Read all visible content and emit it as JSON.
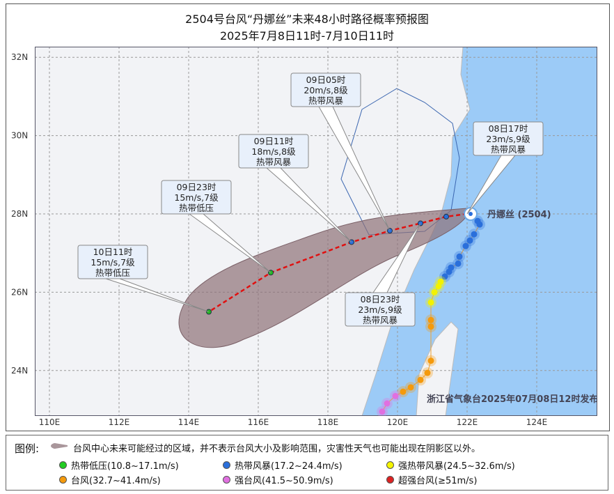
{
  "title": {
    "line1": "2504号台风“丹娜丝”未来48小时路径概率预报图",
    "line2": "2025年7月8日11时-7月10日11时"
  },
  "axes": {
    "lon_ticks": [
      "110E",
      "112E",
      "114E",
      "116E",
      "118E",
      "120E",
      "122E",
      "124E"
    ],
    "lat_ticks": [
      "32N",
      "30N",
      "28N",
      "26N",
      "24N"
    ],
    "lon": [
      110,
      112,
      114,
      116,
      118,
      120,
      122,
      124
    ],
    "lat": [
      32,
      30,
      28,
      26,
      24
    ]
  },
  "typhoon": {
    "name": "丹娜丝 (2504)",
    "current": [
      122.0,
      28.0
    ]
  },
  "forecast": [
    {
      "lon": 121.4,
      "lat": 27.93,
      "color": "#2a6fdb"
    },
    {
      "lon": 120.66,
      "lat": 27.76,
      "time": "08日23时",
      "wind": "23m/s,9级",
      "level": "热带风暴",
      "color": "#2a6fdb"
    },
    {
      "lon": 119.78,
      "lat": 27.57,
      "time": "09日05时",
      "wind": "20m/s,8级",
      "level": "热带风暴",
      "color": "#2a6fdb"
    },
    {
      "lon": 118.68,
      "lat": 27.28,
      "time": "09日11时",
      "wind": "18m/s,8级",
      "level": "热带风暴",
      "color": "#2a6fdb"
    },
    {
      "lon": 116.36,
      "lat": 26.5,
      "time": "09日23时",
      "wind": "15m/s,7级",
      "level": "热带低压",
      "color": "#22bb22"
    },
    {
      "lon": 114.58,
      "lat": 25.5,
      "time": "10日11时",
      "wind": "15m/s,7级",
      "level": "热带低压",
      "color": "#22bb22"
    }
  ],
  "current_label": {
    "time": "08日17时",
    "wind": "23m/s,9级",
    "level": "热带风暴"
  },
  "past_track": [
    [
      122.3,
      27.82,
      "#2a6fdb"
    ],
    [
      122.36,
      27.73,
      "#2a6fdb"
    ],
    [
      122.2,
      27.48,
      "#2a6fdb"
    ],
    [
      122.08,
      27.32,
      "#2a6fdb"
    ],
    [
      121.96,
      27.18,
      "#2a6fdb"
    ],
    [
      121.78,
      26.91,
      "#2a6fdb"
    ],
    [
      121.74,
      26.73,
      "#2a6fdb"
    ],
    [
      121.54,
      26.63,
      "#2a6fdb"
    ],
    [
      121.48,
      26.52,
      "#2a6fdb"
    ],
    [
      121.36,
      26.4,
      "#2a6fdb"
    ],
    [
      121.24,
      26.27,
      "#f2f200"
    ],
    [
      121.18,
      26.15,
      "#f2f200"
    ],
    [
      121.06,
      26.0,
      "#f2f200"
    ],
    [
      120.96,
      25.74,
      "#f2f200"
    ],
    [
      120.96,
      25.29,
      "#f59a0c"
    ],
    [
      120.96,
      25.12,
      "#f59a0c"
    ],
    [
      120.96,
      24.25,
      "#f59a0c"
    ],
    [
      120.86,
      23.94,
      "#f59a0c"
    ],
    [
      120.66,
      23.76,
      "#f59a0c"
    ],
    [
      120.38,
      23.57,
      "#f59a0c"
    ],
    [
      120.16,
      23.46,
      "#f59a0c"
    ],
    [
      119.94,
      23.35,
      "#e070e0"
    ],
    [
      119.7,
      23.16,
      "#e070e0"
    ],
    [
      119.56,
      22.95,
      "#e070e0"
    ]
  ],
  "publisher": "浙江省气象台2025年07月08日12时发布",
  "colors": {
    "sea": "#9ccbf7",
    "land": "#f2f3f6",
    "cone": "#8f7078",
    "track": "#e01010"
  },
  "legend": {
    "title": "图例:",
    "cone_text": "台风中心未来可能经过的区域，并不表示台风大小及影响范围，灾害性天气也可能出现在阴影区以外。",
    "items": [
      {
        "label": "热带低压(10.8~17.1m/s)",
        "color": "#22cc22"
      },
      {
        "label": "热带风暴(17.2~24.4m/s)",
        "color": "#2a6fdb"
      },
      {
        "label": "强热带风暴(24.5~32.6m/s)",
        "color": "#f5f500"
      },
      {
        "label": "台风(32.7~41.4m/s)",
        "color": "#f59a0c"
      },
      {
        "label": "强台风(41.5~50.9m/s)",
        "color": "#e070e0"
      },
      {
        "label": "超强台风(≥51m/s)",
        "color": "#dd2222"
      }
    ]
  }
}
